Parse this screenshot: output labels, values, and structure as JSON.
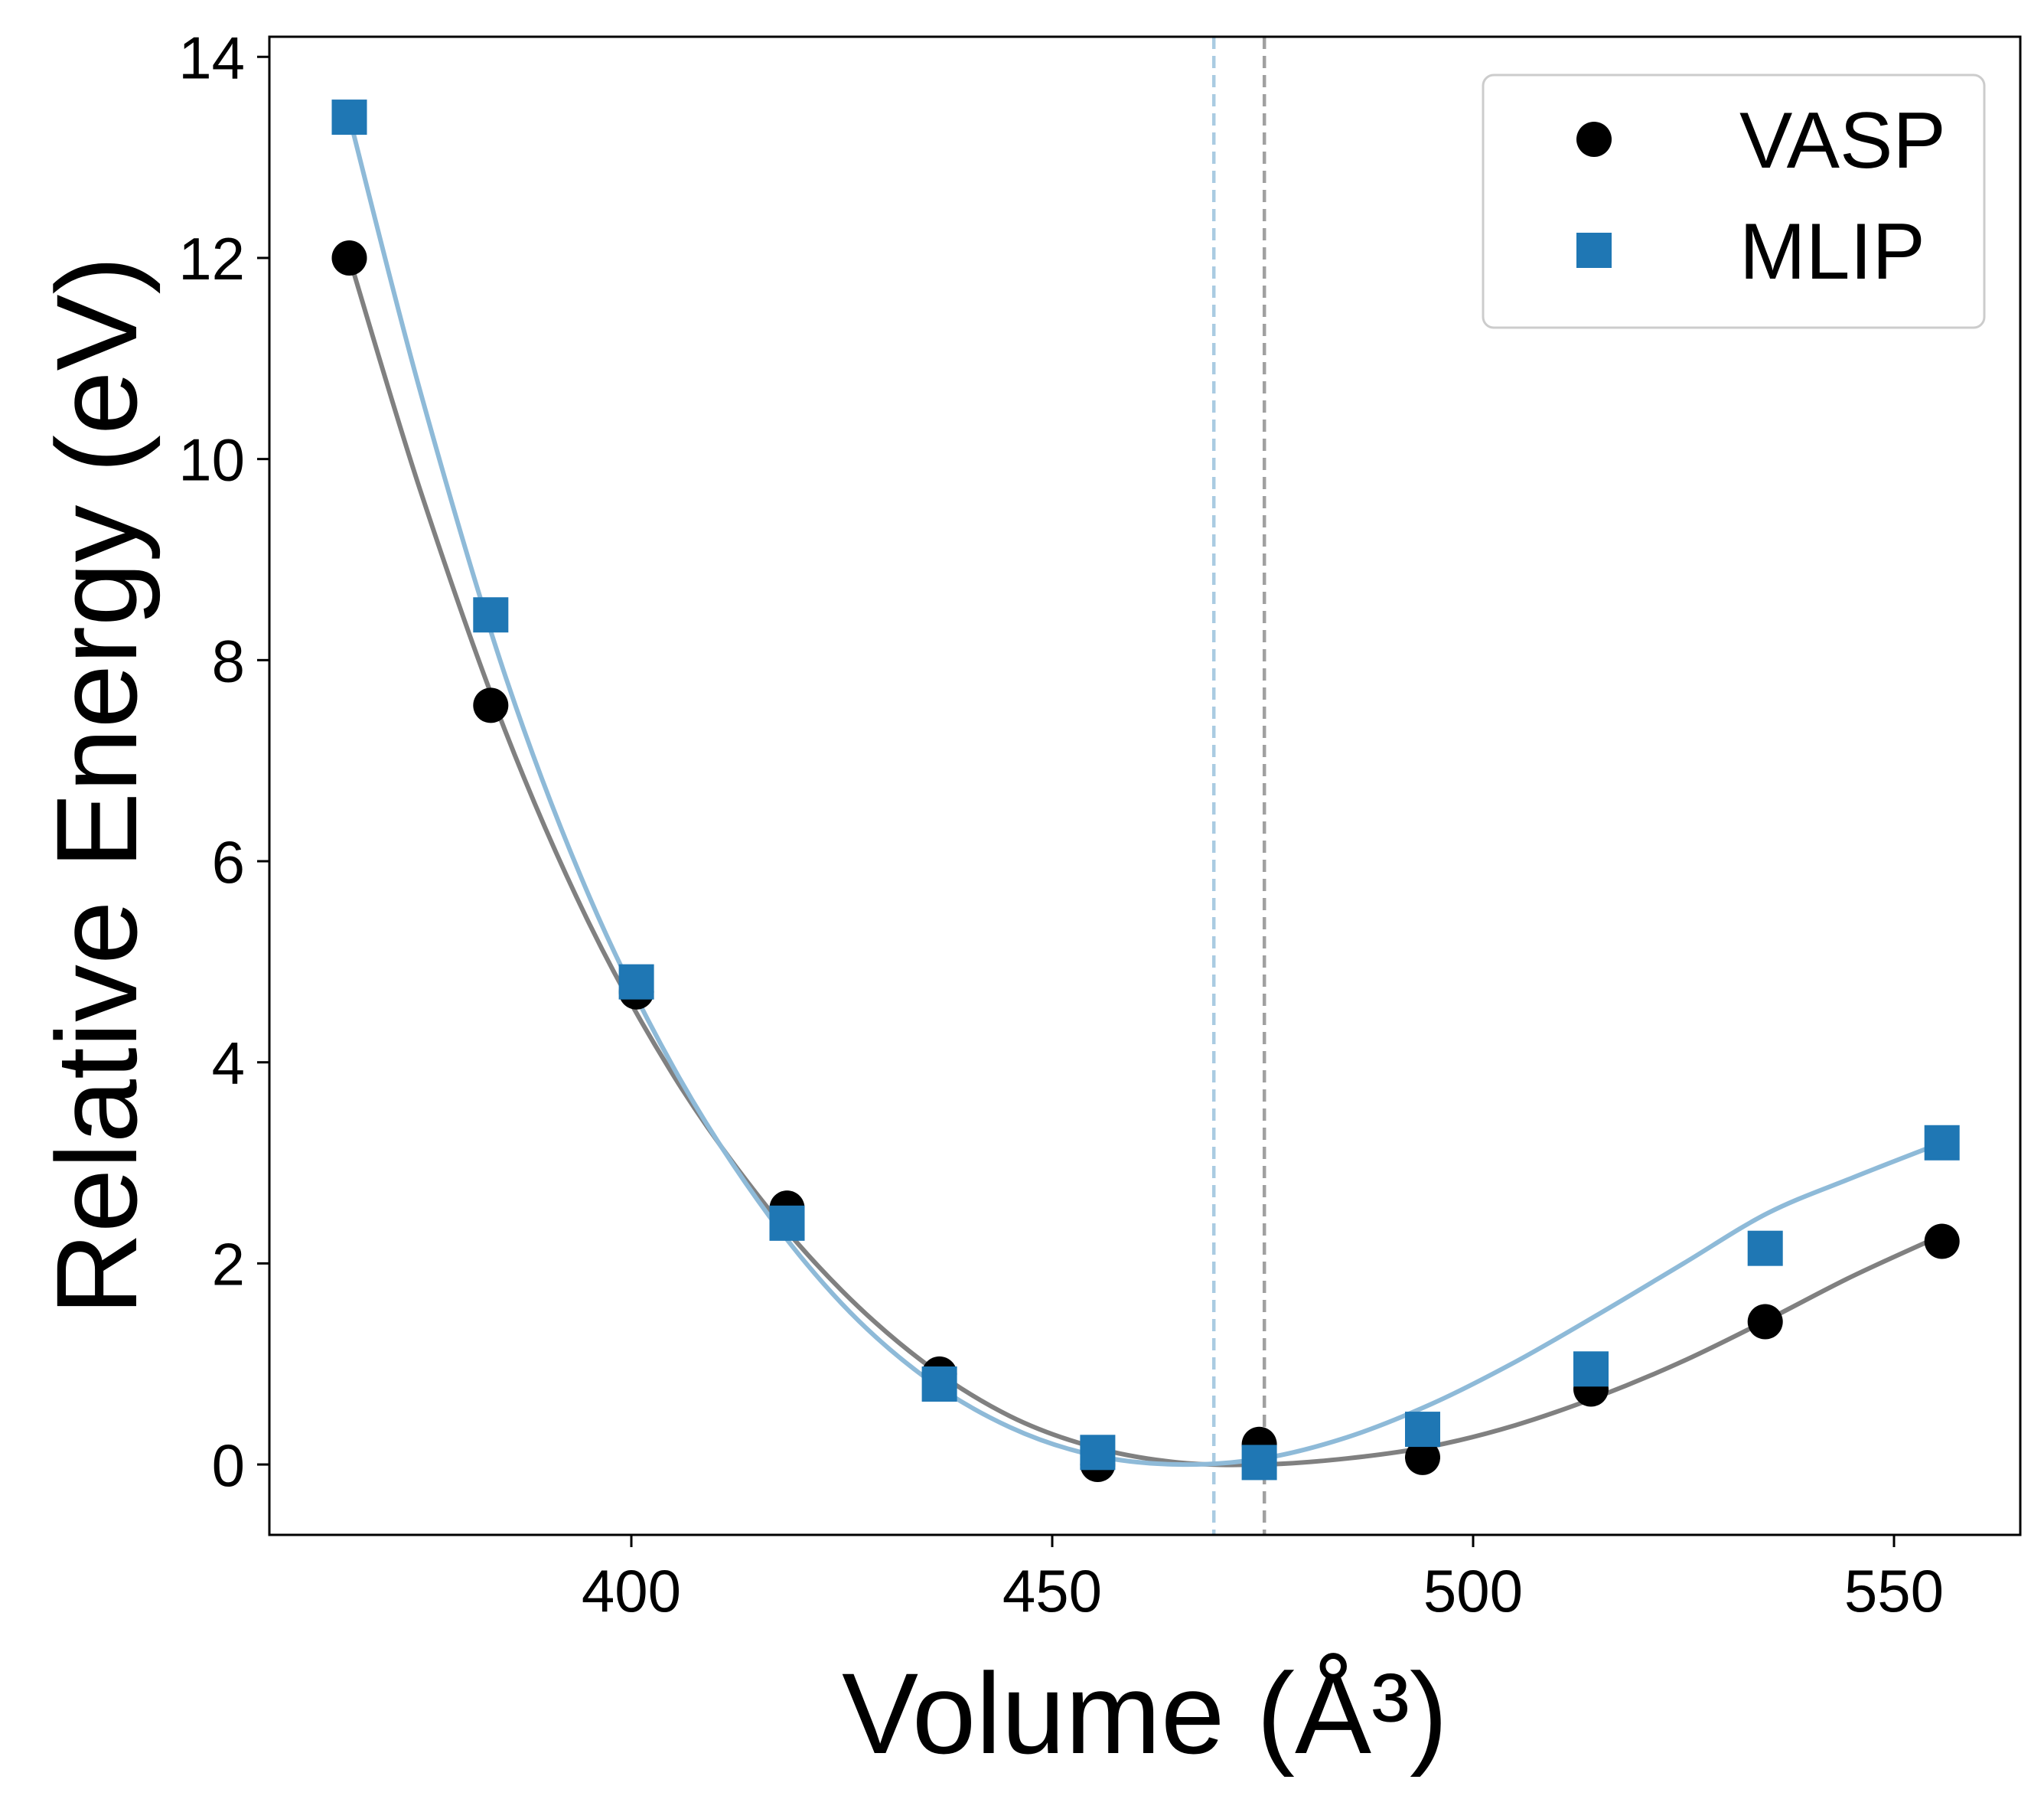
{
  "chart_data": {
    "type": "scatter",
    "title": "",
    "xlabel": "Volume (Å³)",
    "ylabel": "Relative Energy (eV)",
    "xlim": [
      357,
      565
    ],
    "ylim": [
      -0.7,
      14.2
    ],
    "xticks": [
      400,
      450,
      500,
      550
    ],
    "yticks": [
      0,
      2,
      4,
      6,
      8,
      10,
      12,
      14
    ],
    "grid": false,
    "legend_position": "top-right",
    "series": [
      {
        "name": "VASP",
        "marker": "circle",
        "color": "#000000",
        "fit_color": "#808080",
        "x": [
          366.5,
          383.3,
          400.6,
          418.5,
          436.6,
          455.4,
          474.6,
          494.0,
          514.0,
          534.7,
          555.7
        ],
        "y": [
          12.0,
          7.55,
          4.7,
          2.55,
          0.9,
          0.0,
          0.2,
          0.07,
          0.75,
          1.42,
          2.22
        ],
        "fit_x": [
          366.5,
          375,
          385,
          395,
          405,
          415,
          425,
          435,
          445,
          455,
          465,
          475,
          485,
          495,
          505,
          515,
          525,
          535,
          545,
          555.7
        ],
        "fit_y": [
          12.0,
          9.67,
          7.3,
          5.38,
          3.87,
          2.68,
          1.73,
          1.0,
          0.48,
          0.17,
          0.02,
          0.0,
          0.06,
          0.18,
          0.39,
          0.68,
          1.03,
          1.44,
          1.87,
          2.28
        ],
        "min_volume": 475.2
      },
      {
        "name": "MLIP",
        "marker": "square",
        "color": "#1f77b4",
        "fit_color": "#8ebad8",
        "x": [
          366.5,
          383.3,
          400.6,
          418.5,
          436.6,
          455.4,
          474.6,
          494.0,
          514.0,
          534.7,
          555.7
        ],
        "y": [
          13.4,
          8.45,
          4.8,
          2.4,
          0.8,
          0.12,
          0.02,
          0.35,
          0.95,
          2.15,
          3.2
        ],
        "fit_x": [
          366.5,
          375,
          385,
          395,
          405,
          415,
          425,
          435,
          445,
          455,
          465,
          475,
          485,
          495,
          505,
          515,
          525,
          535,
          545,
          555.7
        ],
        "fit_y": [
          13.4,
          10.65,
          7.85,
          5.65,
          3.95,
          2.63,
          1.6,
          0.86,
          0.37,
          0.09,
          0.0,
          0.06,
          0.27,
          0.6,
          1.02,
          1.5,
          2.0,
          2.5,
          2.85,
          3.2
        ],
        "min_volume": 469.2
      }
    ]
  }
}
